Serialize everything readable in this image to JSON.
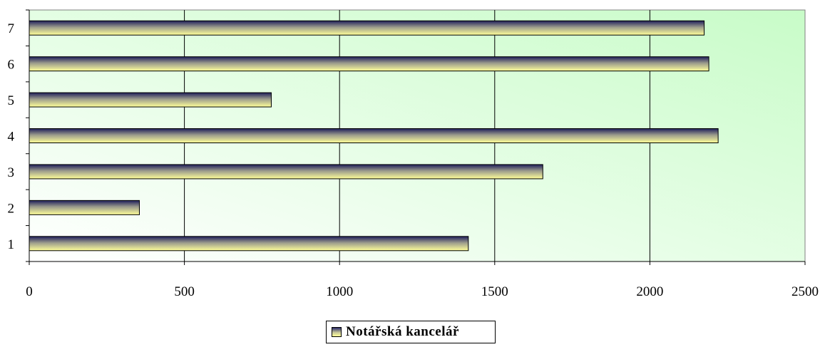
{
  "chart_data": {
    "type": "bar",
    "orientation": "horizontal",
    "categories": [
      "1",
      "2",
      "3",
      "4",
      "5",
      "6",
      "7"
    ],
    "series": [
      {
        "name": "Notářská kancelář",
        "values": [
          1415,
          355,
          1655,
          2220,
          780,
          2190,
          2175
        ]
      }
    ],
    "xlim": [
      0,
      2500
    ],
    "x_ticks": [
      "0",
      "500",
      "1000",
      "1500",
      "2000",
      "2500"
    ],
    "grid": "vertical",
    "legend_position": "bottom",
    "colors": {
      "plot_bg_right": "#c8fcc8",
      "plot_bg_left": "#ffffff",
      "bar_dark": "#1e1e5a",
      "bar_light": "#ffff99",
      "gridline": "#000000"
    }
  }
}
